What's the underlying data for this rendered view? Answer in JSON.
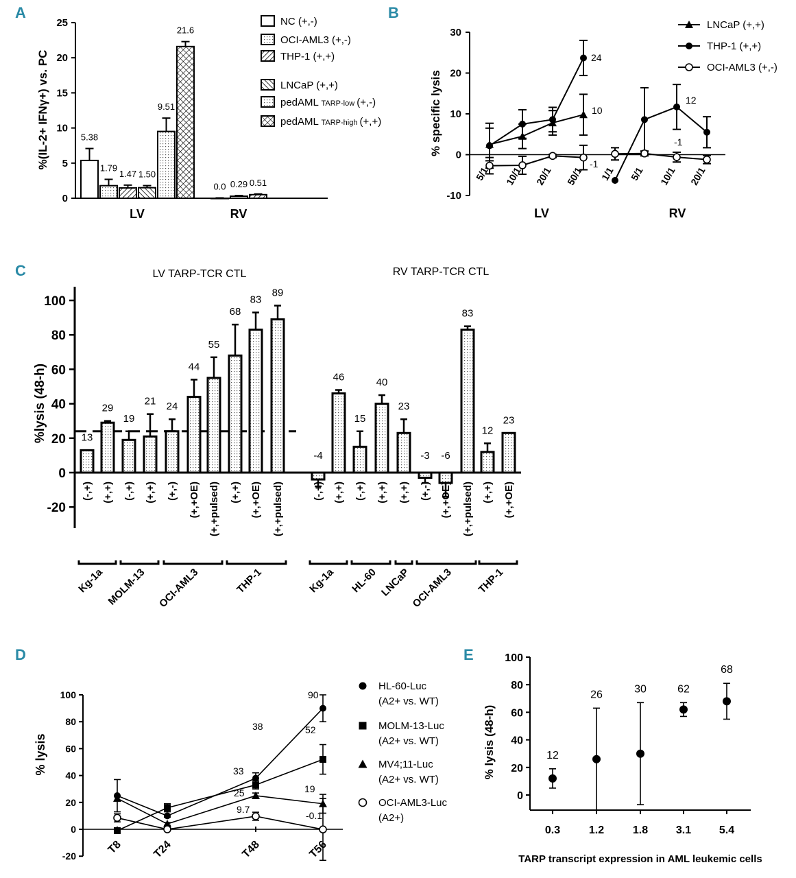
{
  "panels": {
    "A": "A",
    "B": "B",
    "C": "C",
    "D": "D",
    "E": "E"
  },
  "chart_data": [
    {
      "id": "A",
      "type": "bar",
      "ylabel": "%(IL-2+ IFNγ+) vs. PC",
      "ylim": [
        0,
        25
      ],
      "yticks": [
        "0",
        "5",
        "10",
        "15",
        "20",
        "25"
      ],
      "groups": [
        "LV",
        "RV"
      ],
      "series": [
        {
          "name": "NC (+,-)",
          "pattern": "blank",
          "values": [
            5.38,
            0.0
          ],
          "errors": [
            1.7,
            0.05
          ],
          "labels": [
            "5.38",
            "0.0"
          ]
        },
        {
          "name": "OCI-AML3 (+,-)",
          "pattern": "dots",
          "values": [
            1.79,
            0.29
          ],
          "errors": [
            0.9,
            0.1
          ],
          "labels": [
            "1.79",
            "0.29"
          ]
        },
        {
          "name": "THP-1 (+,+)",
          "pattern": "hatch",
          "values": [
            1.47,
            0.51
          ],
          "errors": [
            0.4,
            0.1
          ],
          "labels": [
            "1.47",
            "0.51"
          ]
        },
        {
          "name": "LNCaP (+,+)",
          "pattern": "dhatch",
          "values": [
            1.5,
            null
          ],
          "errors": [
            0.3,
            null
          ],
          "labels": [
            "1.50",
            ""
          ]
        },
        {
          "name": "pedAML",
          "name_sub": "TARP-low",
          "name_tail": "(+,-)",
          "pattern": "dots",
          "values": [
            9.51,
            null
          ],
          "errors": [
            1.9,
            null
          ],
          "labels": [
            "9.51",
            ""
          ]
        },
        {
          "name": "pedAML",
          "name_sub": "TARP-high",
          "name_tail": "(+,+)",
          "pattern": "cross",
          "values": [
            21.6,
            null
          ],
          "errors": [
            0.7,
            null
          ],
          "labels": [
            "21.6",
            ""
          ]
        }
      ]
    },
    {
      "id": "B",
      "type": "line",
      "ylabel": "% specific lysis",
      "ylim": [
        -10,
        30
      ],
      "yticks": [
        "-10",
        "0",
        "10",
        "20",
        "30"
      ],
      "groups": [
        {
          "name": "LV",
          "x": [
            "5/1",
            "10/1",
            "20/1",
            "50/1"
          ]
        },
        {
          "name": "RV",
          "x": [
            "1/1",
            "5/1",
            "10/1",
            "20/1"
          ]
        }
      ],
      "series": [
        {
          "name": "LNCaP (+,+)",
          "marker": "triangle",
          "LV": [
            2.5,
            4.5,
            7.8,
            9.8
          ],
          "LV_err": [
            4,
            3,
            3,
            5
          ],
          "RV": [],
          "RV_err": []
        },
        {
          "name": "THP-1 (+,+)",
          "marker": "circle",
          "LV": [
            2.2,
            7.5,
            8.6,
            23.7
          ],
          "LV_err": [
            5.5,
            3.5,
            3,
            4.3
          ],
          "RV": [
            -6.3,
            8.6,
            11.7,
            5.5
          ],
          "RV_err": [
            0,
            7.8,
            5.5,
            3.8
          ]
        },
        {
          "name": "OCI-AML3 (+,-)",
          "marker": "open-circle",
          "LV": [
            -2.7,
            -2.6,
            -0.3,
            -0.7
          ],
          "LV_err": [
            2,
            2.2,
            0.4,
            3
          ],
          "RV": [
            0.2,
            0.3,
            -0.6,
            -1.2
          ],
          "RV_err": [
            1.5,
            0.6,
            1.2,
            1
          ]
        }
      ],
      "annotations": [
        "24",
        "10",
        "-1",
        "12",
        "-1"
      ]
    },
    {
      "id": "C",
      "type": "bar",
      "ylabel": "%lysis (48-h)",
      "ylim": [
        -20,
        110
      ],
      "yticks": [
        "-20",
        "0",
        "20",
        "40",
        "60",
        "80",
        "100"
      ],
      "titles": [
        "LV TARP-TCR CTL",
        "RV TARP-TCR CTL"
      ],
      "threshold": 24,
      "LV": {
        "bars": [
          {
            "label": "(-,+)",
            "value": 13,
            "err": 0,
            "dl": "13"
          },
          {
            "label": "(+,+)",
            "value": 29,
            "err": 1,
            "dl": "29"
          },
          {
            "label": "(-,+)",
            "value": 19,
            "err": 5,
            "dl": "19"
          },
          {
            "label": "(+,+)",
            "value": 21,
            "err": 13,
            "dl": "21"
          },
          {
            "label": "(+,-)",
            "value": 24,
            "err": 7,
            "dl": "24"
          },
          {
            "label": "(+,+OE)",
            "value": 44,
            "err": 10,
            "dl": "44"
          },
          {
            "label": "(+,+pulsed)",
            "value": 55,
            "err": 12,
            "dl": "55"
          },
          {
            "label": "(+,+)",
            "value": 68,
            "err": 18,
            "dl": "68"
          },
          {
            "label": "(+,+OE)",
            "value": 83,
            "err": 10,
            "dl": "83"
          },
          {
            "label": "(+,+pulsed)",
            "value": 89,
            "err": 8,
            "dl": "89"
          }
        ],
        "cells": [
          {
            "name": "Kg-1a",
            "from": 0,
            "to": 1
          },
          {
            "name": "MOLM-13",
            "from": 2,
            "to": 3
          },
          {
            "name": "OCI-AML3",
            "from": 4,
            "to": 6
          },
          {
            "name": "THP-1",
            "from": 7,
            "to": 9
          }
        ]
      },
      "RV": {
        "bars": [
          {
            "label": "(-,+)",
            "value": -4,
            "err": 4,
            "dl": "-4"
          },
          {
            "label": "(+,+)",
            "value": 46,
            "err": 2,
            "dl": "46"
          },
          {
            "label": "(-,+)",
            "value": 15,
            "err": 9,
            "dl": "15"
          },
          {
            "label": "(+,+)",
            "value": 40,
            "err": 5,
            "dl": "40"
          },
          {
            "label": "(+,+)",
            "value": 23,
            "err": 8,
            "dl": "23"
          },
          {
            "label": "(+,-)",
            "value": -3,
            "err": 3,
            "dl": "-3"
          },
          {
            "label": "(+,+OE)",
            "value": -6,
            "err": 8,
            "dl": "-6"
          },
          {
            "label": "(+,+pulsed)",
            "value": 83,
            "err": 2,
            "dl": "83"
          },
          {
            "label": "(+,+)",
            "value": 12,
            "err": 5,
            "dl": "12"
          },
          {
            "label": "(+,+OE)",
            "value": 23,
            "err": 0,
            "dl": "23"
          }
        ],
        "cells": [
          {
            "name": "Kg-1a",
            "from": 0,
            "to": 1
          },
          {
            "name": "HL-60",
            "from": 2,
            "to": 3
          },
          {
            "name": "LNCaP",
            "from": 4,
            "to": 4
          },
          {
            "name": "OCI-AML3",
            "from": 5,
            "to": 7
          },
          {
            "name": "THP-1",
            "from": 8,
            "to": 9
          }
        ]
      }
    },
    {
      "id": "D",
      "type": "line",
      "ylabel": "% lysis",
      "ylim": [
        -20,
        100
      ],
      "yticks": [
        "-20",
        "0",
        "20",
        "40",
        "60",
        "80",
        "100"
      ],
      "x": [
        "T8",
        "T24",
        "T48",
        "T56"
      ],
      "series": [
        {
          "name": "HL-60-Luc",
          "name2": "(A2+ vs. WT)",
          "marker": "circle",
          "values": [
            25,
            10,
            38,
            90
          ],
          "errors": [
            12,
            1,
            4,
            10
          ]
        },
        {
          "name": "MOLM-13-Luc",
          "name2": "(A2+ vs. WT)",
          "marker": "square",
          "values": [
            -1,
            16,
            33,
            52
          ],
          "errors": [
            2,
            3,
            3,
            11
          ]
        },
        {
          "name": "MV4;11-Luc",
          "name2": "(A2+ vs. WT)",
          "marker": "triangle",
          "values": [
            23,
            4,
            25,
            19
          ],
          "errors": [
            2,
            1,
            2,
            7
          ]
        },
        {
          "name": "OCI-AML3-Luc",
          "name2": "(A2+)",
          "marker": "open-circle",
          "values": [
            8.5,
            0,
            9.7,
            -0.1
          ],
          "errors": [
            3,
            0,
            3,
            23
          ]
        }
      ],
      "annotations": [
        "90",
        "38",
        "33",
        "52",
        "25",
        "19",
        "9.7",
        "-0.1"
      ]
    },
    {
      "id": "E",
      "type": "scatter",
      "ylabel": "% lysis (48-h)",
      "xlabel": "TARP transcript expression in AML leukemic cells",
      "ylim": [
        -10,
        100
      ],
      "yticks": [
        "0",
        "20",
        "40",
        "60",
        "80",
        "100"
      ],
      "x": [
        "0.3",
        "1.2",
        "1.8",
        "3.1",
        "5.4"
      ],
      "values": [
        12,
        26,
        30,
        62,
        68
      ],
      "errors": [
        7,
        37,
        37,
        5,
        13
      ],
      "labels": [
        "12",
        "26",
        "30",
        "62",
        "68"
      ]
    }
  ]
}
